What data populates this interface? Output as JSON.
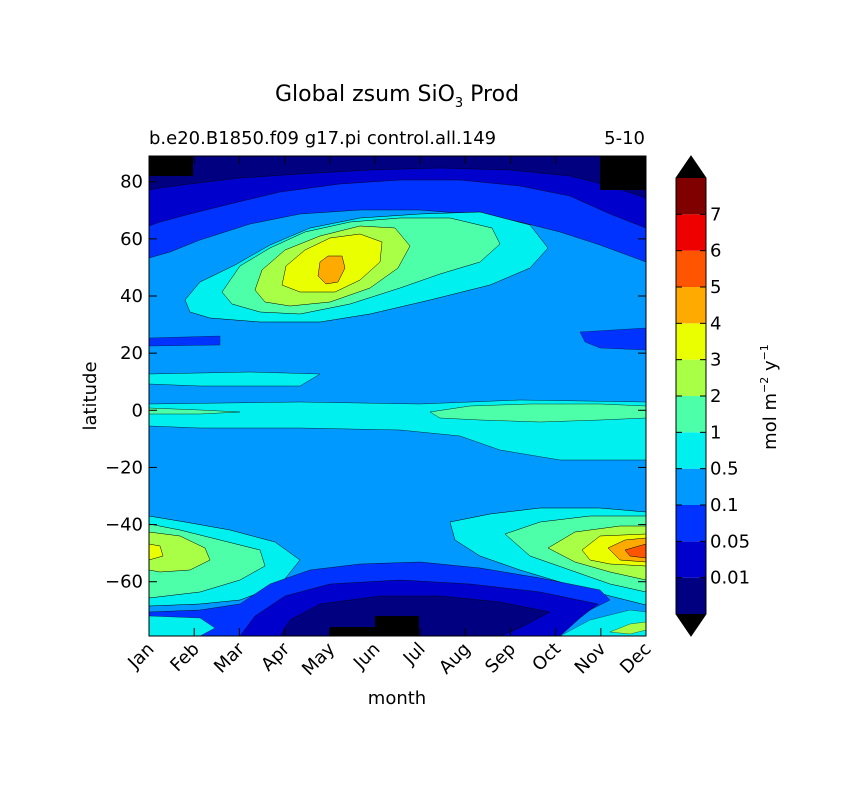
{
  "chart_data": {
    "type": "heatmap",
    "title": "Global zsum SiO",
    "title_sub": "3",
    "title_suffix": " Prod",
    "subtitle_left": "b.e20.B1850.f09 g17.pi control.all.149",
    "subtitle_right": "5-10",
    "xlabel": "month",
    "ylabel": "latitude",
    "x_ticks": [
      "Jan",
      "Feb",
      "Mar",
      "Apr",
      "May",
      "Jun",
      "Jul",
      "Aug",
      "Sep",
      "Oct",
      "Nov",
      "Dec"
    ],
    "xlim": [
      0,
      11
    ],
    "y_ticks": [
      80,
      60,
      40,
      20,
      0,
      -20,
      -40,
      -60
    ],
    "y_tick_labels": [
      "80",
      "60",
      "40",
      "20",
      "0",
      "−20",
      "−40",
      "−60"
    ],
    "ylim": [
      -79,
      89
    ],
    "colorbar": {
      "label_main": "mol m",
      "label_exp1": "−2",
      "label_mid": " y",
      "label_exp2": "−1",
      "levels": [
        "0.01",
        "0.05",
        "0.1",
        "0.5",
        "1",
        "2",
        "3",
        "4",
        "5",
        "6",
        "7"
      ],
      "colors": [
        "#000080",
        "#0000cd",
        "#0033ff",
        "#0099ff",
        "#00f0f0",
        "#4dffa8",
        "#a8ff45",
        "#eaff00",
        "#ffaa00",
        "#ff5500",
        "#ee0000",
        "#800000"
      ],
      "under_color": "#000000",
      "over_color": "#000000"
    },
    "regions": [
      {
        "name": "northern-high-latitude-low",
        "level": "0.05",
        "month": [
          0,
          11
        ],
        "lat": [
          68,
          89
        ]
      },
      {
        "name": "north-atlantic-bloom-core",
        "level": "4",
        "month": [
          3.8,
          4.3
        ],
        "lat": [
          44,
          56
        ]
      },
      {
        "name": "north-atlantic-bloom",
        "level": "3",
        "month": [
          3,
          5.8
        ],
        "lat": [
          40,
          62
        ]
      },
      {
        "name": "southern-ocean-bloom",
        "level": "2",
        "month": [
          9,
          11
        ],
        "lat": [
          -60,
          -38
        ]
      },
      {
        "name": "southern-ocean-peak",
        "level": "5",
        "month": [
          10.3,
          11
        ],
        "lat": [
          -52,
          -46
        ]
      },
      {
        "name": "equatorial-band",
        "level": "2",
        "month": [
          6,
          11
        ],
        "lat": [
          -4,
          4
        ]
      },
      {
        "name": "antarctic-low",
        "level": "0.01",
        "month": [
          3,
          10
        ],
        "lat": [
          -79,
          -65
        ]
      }
    ]
  }
}
